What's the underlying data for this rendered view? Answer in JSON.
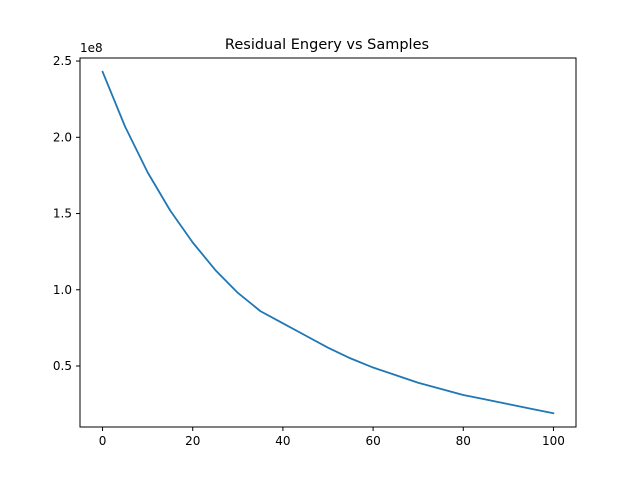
{
  "chart_data": {
    "type": "line",
    "title": "Residual Engery vs Samples",
    "xlabel": "",
    "ylabel": "",
    "y_offset_label": "1e8",
    "xlim": [
      -5,
      105
    ],
    "ylim": [
      0.1,
      2.52
    ],
    "x_ticks": [
      0,
      20,
      40,
      60,
      80,
      100
    ],
    "x_tick_labels": [
      "0",
      "20",
      "40",
      "60",
      "80",
      "100"
    ],
    "y_ticks": [
      0.5,
      1.0,
      1.5,
      2.0,
      2.5
    ],
    "y_tick_labels": [
      "0.5",
      "1.0",
      "1.5",
      "2.0",
      "2.5"
    ],
    "grid": false,
    "series": [
      {
        "color": "#1f77b4",
        "x": [
          0,
          5,
          10,
          15,
          20,
          25,
          30,
          35,
          40,
          45,
          50,
          55,
          60,
          65,
          70,
          75,
          80,
          85,
          90,
          95,
          100
        ],
        "y": [
          2.43,
          2.07,
          1.77,
          1.52,
          1.31,
          1.13,
          0.98,
          0.86,
          0.78,
          0.7,
          0.62,
          0.55,
          0.49,
          0.44,
          0.39,
          0.35,
          0.31,
          0.28,
          0.25,
          0.22,
          0.19
        ]
      }
    ]
  }
}
